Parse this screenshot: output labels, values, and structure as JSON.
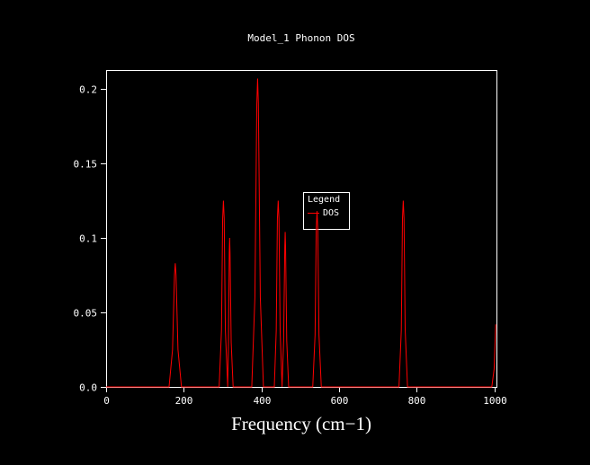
{
  "title": "Model_1 Phonon DOS",
  "xlabel": "Frequency (cm−1)",
  "legend": {
    "title": "Legend",
    "entries": [
      {
        "label": "DOS",
        "color": "#ff0000"
      }
    ]
  },
  "colors": {
    "background": "#000000",
    "axes": "#ffffff",
    "line": "#ff0000"
  },
  "chart_data": {
    "type": "line",
    "title": "Model_1 Phonon DOS",
    "xlabel": "Frequency (cm−1)",
    "ylabel": "",
    "xlim": [
      0,
      1005
    ],
    "ylim": [
      0,
      0.2127
    ],
    "grid": false,
    "legend_position": "center",
    "x_ticks": [
      0,
      200,
      400,
      600,
      800,
      1000
    ],
    "x_tick_labels": [
      "0",
      "200",
      "400",
      "600",
      "800",
      "1000"
    ],
    "y_ticks": [
      0,
      0.05,
      0.1,
      0.15,
      0.2
    ],
    "y_tick_labels": [
      "0.0",
      "0.05",
      "0.1",
      "0.15",
      "0.2"
    ],
    "peaks": [
      {
        "center": 178,
        "height": 0.083
      },
      {
        "center": 302,
        "height": 0.125
      },
      {
        "center": 318,
        "height": 0.1
      },
      {
        "center": 390,
        "height": 0.207
      },
      {
        "center": 443,
        "height": 0.125
      },
      {
        "center": 461,
        "height": 0.104
      },
      {
        "center": 543,
        "height": 0.118
      },
      {
        "center": 765,
        "height": 0.125
      },
      {
        "center": 1003,
        "height": 0.042,
        "note": "truncated at right axis edge"
      }
    ],
    "series": [
      {
        "name": "DOS",
        "color": "#ff0000",
        "points": [
          [
            0,
            0
          ],
          [
            162,
            0
          ],
          [
            171,
            0.025
          ],
          [
            176,
            0.075
          ],
          [
            178,
            0.083
          ],
          [
            180,
            0.075
          ],
          [
            185,
            0.025
          ],
          [
            194,
            0
          ],
          [
            291,
            0
          ],
          [
            297,
            0.038
          ],
          [
            300,
            0.113
          ],
          [
            302,
            0.125
          ],
          [
            304,
            0.113
          ],
          [
            307,
            0.038
          ],
          [
            313,
            0
          ],
          [
            315,
            0.03
          ],
          [
            317,
            0.09
          ],
          [
            318,
            0.1
          ],
          [
            319,
            0.09
          ],
          [
            322,
            0.03
          ],
          [
            327,
            0
          ],
          [
            375,
            0
          ],
          [
            383,
            0.06
          ],
          [
            388,
            0.19
          ],
          [
            390,
            0.207
          ],
          [
            392,
            0.19
          ],
          [
            397,
            0.06
          ],
          [
            405,
            0
          ],
          [
            433,
            0
          ],
          [
            438,
            0.038
          ],
          [
            441,
            0.113
          ],
          [
            443,
            0.125
          ],
          [
            445,
            0.113
          ],
          [
            448,
            0.038
          ],
          [
            453,
            0
          ],
          [
            457,
            0.031
          ],
          [
            460,
            0.094
          ],
          [
            461,
            0.104
          ],
          [
            462,
            0.094
          ],
          [
            465,
            0.031
          ],
          [
            470,
            0
          ],
          [
            532,
            0
          ],
          [
            538,
            0.035
          ],
          [
            541,
            0.106
          ],
          [
            543,
            0.118
          ],
          [
            545,
            0.106
          ],
          [
            548,
            0.035
          ],
          [
            554,
            0
          ],
          [
            754,
            0
          ],
          [
            760,
            0.038
          ],
          [
            763,
            0.113
          ],
          [
            765,
            0.125
          ],
          [
            767,
            0.113
          ],
          [
            770,
            0.038
          ],
          [
            776,
            0
          ],
          [
            993,
            0
          ],
          [
            999,
            0.012
          ],
          [
            1003,
            0.042
          ]
        ]
      }
    ]
  }
}
